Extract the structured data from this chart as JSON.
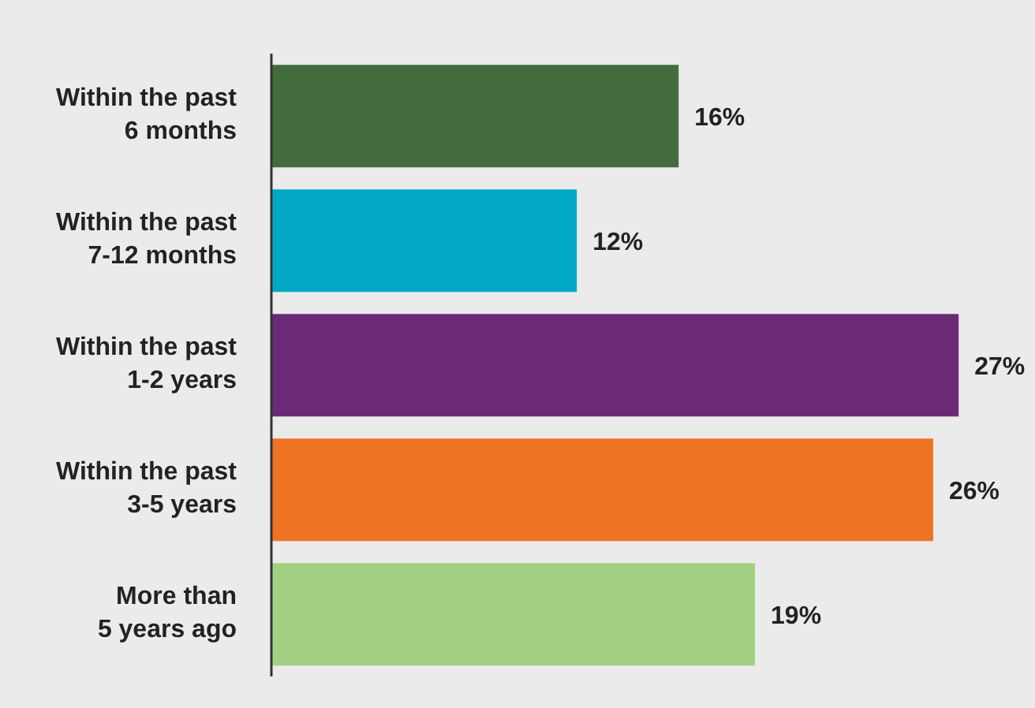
{
  "chart_data": {
    "type": "bar",
    "orientation": "horizontal",
    "categories": [
      "Within the past\n6 months",
      "Within the past\n7-12 months",
      "Within the past\n1-2 years",
      "Within the past\n3-5 years",
      "More than\n5 years ago"
    ],
    "values": [
      16,
      12,
      27,
      26,
      19
    ],
    "colors": [
      "#436b3e",
      "#00a8c6",
      "#6b2a77",
      "#ee7423",
      "#a3d083"
    ],
    "value_labels": [
      "16%",
      "12%",
      "27%",
      "26%",
      "19%"
    ],
    "xlim": [
      0,
      30
    ],
    "tick_labels": "y"
  }
}
